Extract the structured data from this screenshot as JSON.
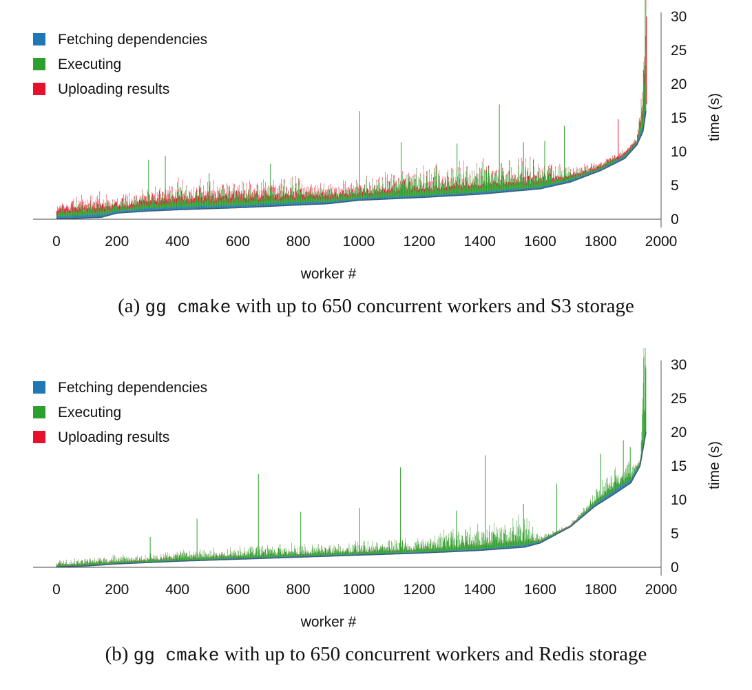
{
  "chart_data": [
    {
      "type": "bar",
      "caption": {
        "label": "(a)",
        "command": "gg cmake",
        "text": "with up to 650 concurrent workers and S3 storage"
      },
      "xlabel": "worker #",
      "ylabel": "time (s)",
      "xlim": [
        0,
        2000
      ],
      "ylim": [
        0,
        30
      ],
      "xticks": [
        "0",
        "200",
        "400",
        "600",
        "800",
        "1000",
        "1200",
        "1400",
        "1600",
        "1800",
        "2000"
      ],
      "yticks": [
        "0",
        "5",
        "10",
        "15",
        "20",
        "25",
        "30"
      ],
      "y_axis_position": "right",
      "legend_position": "top-left",
      "stacked": true,
      "series": [
        {
          "name": "Fetching dependencies",
          "color": "#1f77b4"
        },
        {
          "name": "Executing",
          "color": "#2ca02c"
        },
        {
          "name": "Uploading results",
          "color": "#e8112d"
        }
      ],
      "workers": [
        {
          "worker": 0,
          "start": 0.1,
          "fetch": 0.3,
          "exec": 0.5,
          "upload": 0.5
        },
        {
          "worker": 50,
          "start": 0.1,
          "fetch": 0.4,
          "exec": 0.8,
          "upload": 0.6
        },
        {
          "worker": 100,
          "start": 0.2,
          "fetch": 0.4,
          "exec": 0.9,
          "upload": 0.6
        },
        {
          "worker": 150,
          "start": 0.3,
          "fetch": 0.4,
          "exec": 0.8,
          "upload": 0.6
        },
        {
          "worker": 200,
          "start": 0.9,
          "fetch": 0.3,
          "exec": 0.6,
          "upload": 0.4
        },
        {
          "worker": 300,
          "start": 1.2,
          "fetch": 0.4,
          "exec": 1.0,
          "upload": 0.6
        },
        {
          "worker": 400,
          "start": 1.4,
          "fetch": 0.4,
          "exec": 1.2,
          "upload": 0.6
        },
        {
          "worker": 600,
          "start": 1.7,
          "fetch": 0.4,
          "exec": 1.1,
          "upload": 0.6
        },
        {
          "worker": 800,
          "start": 2.1,
          "fetch": 0.4,
          "exec": 1.1,
          "upload": 0.6
        },
        {
          "worker": 900,
          "start": 2.3,
          "fetch": 0.3,
          "exec": 0.8,
          "upload": 0.5
        },
        {
          "worker": 1000,
          "start": 2.8,
          "fetch": 0.3,
          "exec": 0.8,
          "upload": 0.4
        },
        {
          "worker": 1200,
          "start": 3.2,
          "fetch": 0.3,
          "exec": 1.5,
          "upload": 0.4
        },
        {
          "worker": 1400,
          "start": 3.7,
          "fetch": 0.3,
          "exec": 1.5,
          "upload": 0.4
        },
        {
          "worker": 1600,
          "start": 4.5,
          "fetch": 0.3,
          "exec": 1.3,
          "upload": 0.4
        },
        {
          "worker": 1700,
          "start": 5.5,
          "fetch": 0.3,
          "exec": 0.6,
          "upload": 0.3
        },
        {
          "worker": 1800,
          "start": 7.2,
          "fetch": 0.2,
          "exec": 0.3,
          "upload": 0.3
        },
        {
          "worker": 1880,
          "start": 9.0,
          "fetch": 0.3,
          "exec": 0.2,
          "upload": 0.3
        },
        {
          "worker": 1920,
          "start": 11.0,
          "fetch": 0.3,
          "exec": 0.3,
          "upload": 0.3
        },
        {
          "worker": 1940,
          "start": 13.0,
          "fetch": 0.8,
          "exec": 2.5,
          "upload": 1.0
        },
        {
          "worker": 1950,
          "start": 16.0,
          "fetch": 1.0,
          "exec": 10.0,
          "upload": 3.0
        }
      ],
      "spikes": [
        {
          "worker": 305,
          "top": 8.8,
          "kind": "exec"
        },
        {
          "worker": 360,
          "top": 9.4,
          "kind": "exec"
        },
        {
          "worker": 505,
          "top": 6.8,
          "kind": "exec"
        },
        {
          "worker": 708,
          "top": 8.2,
          "kind": "exec"
        },
        {
          "worker": 1003,
          "top": 16.0,
          "kind": "exec"
        },
        {
          "worker": 1140,
          "top": 11.4,
          "kind": "exec"
        },
        {
          "worker": 1325,
          "top": 11.2,
          "kind": "exec"
        },
        {
          "worker": 1465,
          "top": 17.0,
          "kind": "exec"
        },
        {
          "worker": 1545,
          "top": 11.4,
          "kind": "exec"
        },
        {
          "worker": 1615,
          "top": 11.6,
          "kind": "exec"
        },
        {
          "worker": 1680,
          "top": 13.8,
          "kind": "exec"
        },
        {
          "worker": 1858,
          "top": 14.8,
          "kind": "upload"
        },
        {
          "worker": 1943,
          "top": 22.0,
          "kind": "exec"
        },
        {
          "worker": 1952,
          "top": 30.0,
          "kind": "upload"
        }
      ]
    },
    {
      "type": "bar",
      "caption": {
        "label": "(b)",
        "command": "gg cmake",
        "text": "with up to 650 concurrent workers and Redis storage"
      },
      "xlabel": "worker #",
      "ylabel": "time (s)",
      "xlim": [
        0,
        2000
      ],
      "ylim": [
        0,
        30
      ],
      "xticks": [
        "0",
        "200",
        "400",
        "600",
        "800",
        "1000",
        "1200",
        "1400",
        "1600",
        "1800",
        "2000"
      ],
      "yticks": [
        "0",
        "5",
        "10",
        "15",
        "20",
        "25",
        "30"
      ],
      "y_axis_position": "right",
      "legend_position": "top-left",
      "stacked": true,
      "series": [
        {
          "name": "Fetching dependencies",
          "color": "#1f77b4"
        },
        {
          "name": "Executing",
          "color": "#2ca02c"
        },
        {
          "name": "Uploading results",
          "color": "#e8112d"
        }
      ],
      "workers": [
        {
          "worker": 0,
          "start": 0.05,
          "fetch": 0.1,
          "exec": 0.3,
          "upload": 0.05
        },
        {
          "worker": 100,
          "start": 0.2,
          "fetch": 0.1,
          "exec": 0.4,
          "upload": 0.05
        },
        {
          "worker": 200,
          "start": 0.5,
          "fetch": 0.1,
          "exec": 0.4,
          "upload": 0.05
        },
        {
          "worker": 400,
          "start": 0.9,
          "fetch": 0.1,
          "exec": 0.5,
          "upload": 0.05
        },
        {
          "worker": 600,
          "start": 1.2,
          "fetch": 0.15,
          "exec": 0.6,
          "upload": 0.05
        },
        {
          "worker": 800,
          "start": 1.5,
          "fetch": 0.15,
          "exec": 0.6,
          "upload": 0.05
        },
        {
          "worker": 1000,
          "start": 1.8,
          "fetch": 0.15,
          "exec": 0.6,
          "upload": 0.05
        },
        {
          "worker": 1200,
          "start": 2.1,
          "fetch": 0.15,
          "exec": 0.8,
          "upload": 0.05
        },
        {
          "worker": 1400,
          "start": 2.5,
          "fetch": 0.2,
          "exec": 1.2,
          "upload": 0.05
        },
        {
          "worker": 1550,
          "start": 3.0,
          "fetch": 0.3,
          "exec": 1.5,
          "upload": 0.05
        },
        {
          "worker": 1600,
          "start": 3.6,
          "fetch": 0.2,
          "exec": 0.3,
          "upload": 0.05
        },
        {
          "worker": 1700,
          "start": 6.0,
          "fetch": 0.1,
          "exec": 0.1,
          "upload": 0.05
        },
        {
          "worker": 1780,
          "start": 9.0,
          "fetch": 0.3,
          "exec": 0.6,
          "upload": 0.05
        },
        {
          "worker": 1850,
          "start": 11.0,
          "fetch": 0.5,
          "exec": 1.5,
          "upload": 0.05
        },
        {
          "worker": 1900,
          "start": 12.5,
          "fetch": 0.5,
          "exec": 1.0,
          "upload": 0.05
        },
        {
          "worker": 1930,
          "start": 15.0,
          "fetch": 0.2,
          "exec": 0.3,
          "upload": 0.05
        },
        {
          "worker": 1950,
          "start": 20.0,
          "fetch": 0.5,
          "exec": 9.5,
          "upload": 0.1
        }
      ],
      "spikes": [
        {
          "worker": 310,
          "top": 4.5,
          "kind": "exec"
        },
        {
          "worker": 465,
          "top": 7.2,
          "kind": "exec"
        },
        {
          "worker": 668,
          "top": 13.8,
          "kind": "exec"
        },
        {
          "worker": 808,
          "top": 8.2,
          "kind": "exec"
        },
        {
          "worker": 1003,
          "top": 8.8,
          "kind": "exec"
        },
        {
          "worker": 1138,
          "top": 14.8,
          "kind": "exec"
        },
        {
          "worker": 1323,
          "top": 8.4,
          "kind": "exec"
        },
        {
          "worker": 1418,
          "top": 16.6,
          "kind": "exec"
        },
        {
          "worker": 1545,
          "top": 9.4,
          "kind": "exec"
        },
        {
          "worker": 1655,
          "top": 12.4,
          "kind": "exec"
        },
        {
          "worker": 1800,
          "top": 16.8,
          "kind": "exec"
        },
        {
          "worker": 1875,
          "top": 18.8,
          "kind": "exec"
        },
        {
          "worker": 1898,
          "top": 17.8,
          "kind": "exec"
        },
        {
          "worker": 1948,
          "top": 30.0,
          "kind": "exec"
        }
      ]
    }
  ]
}
